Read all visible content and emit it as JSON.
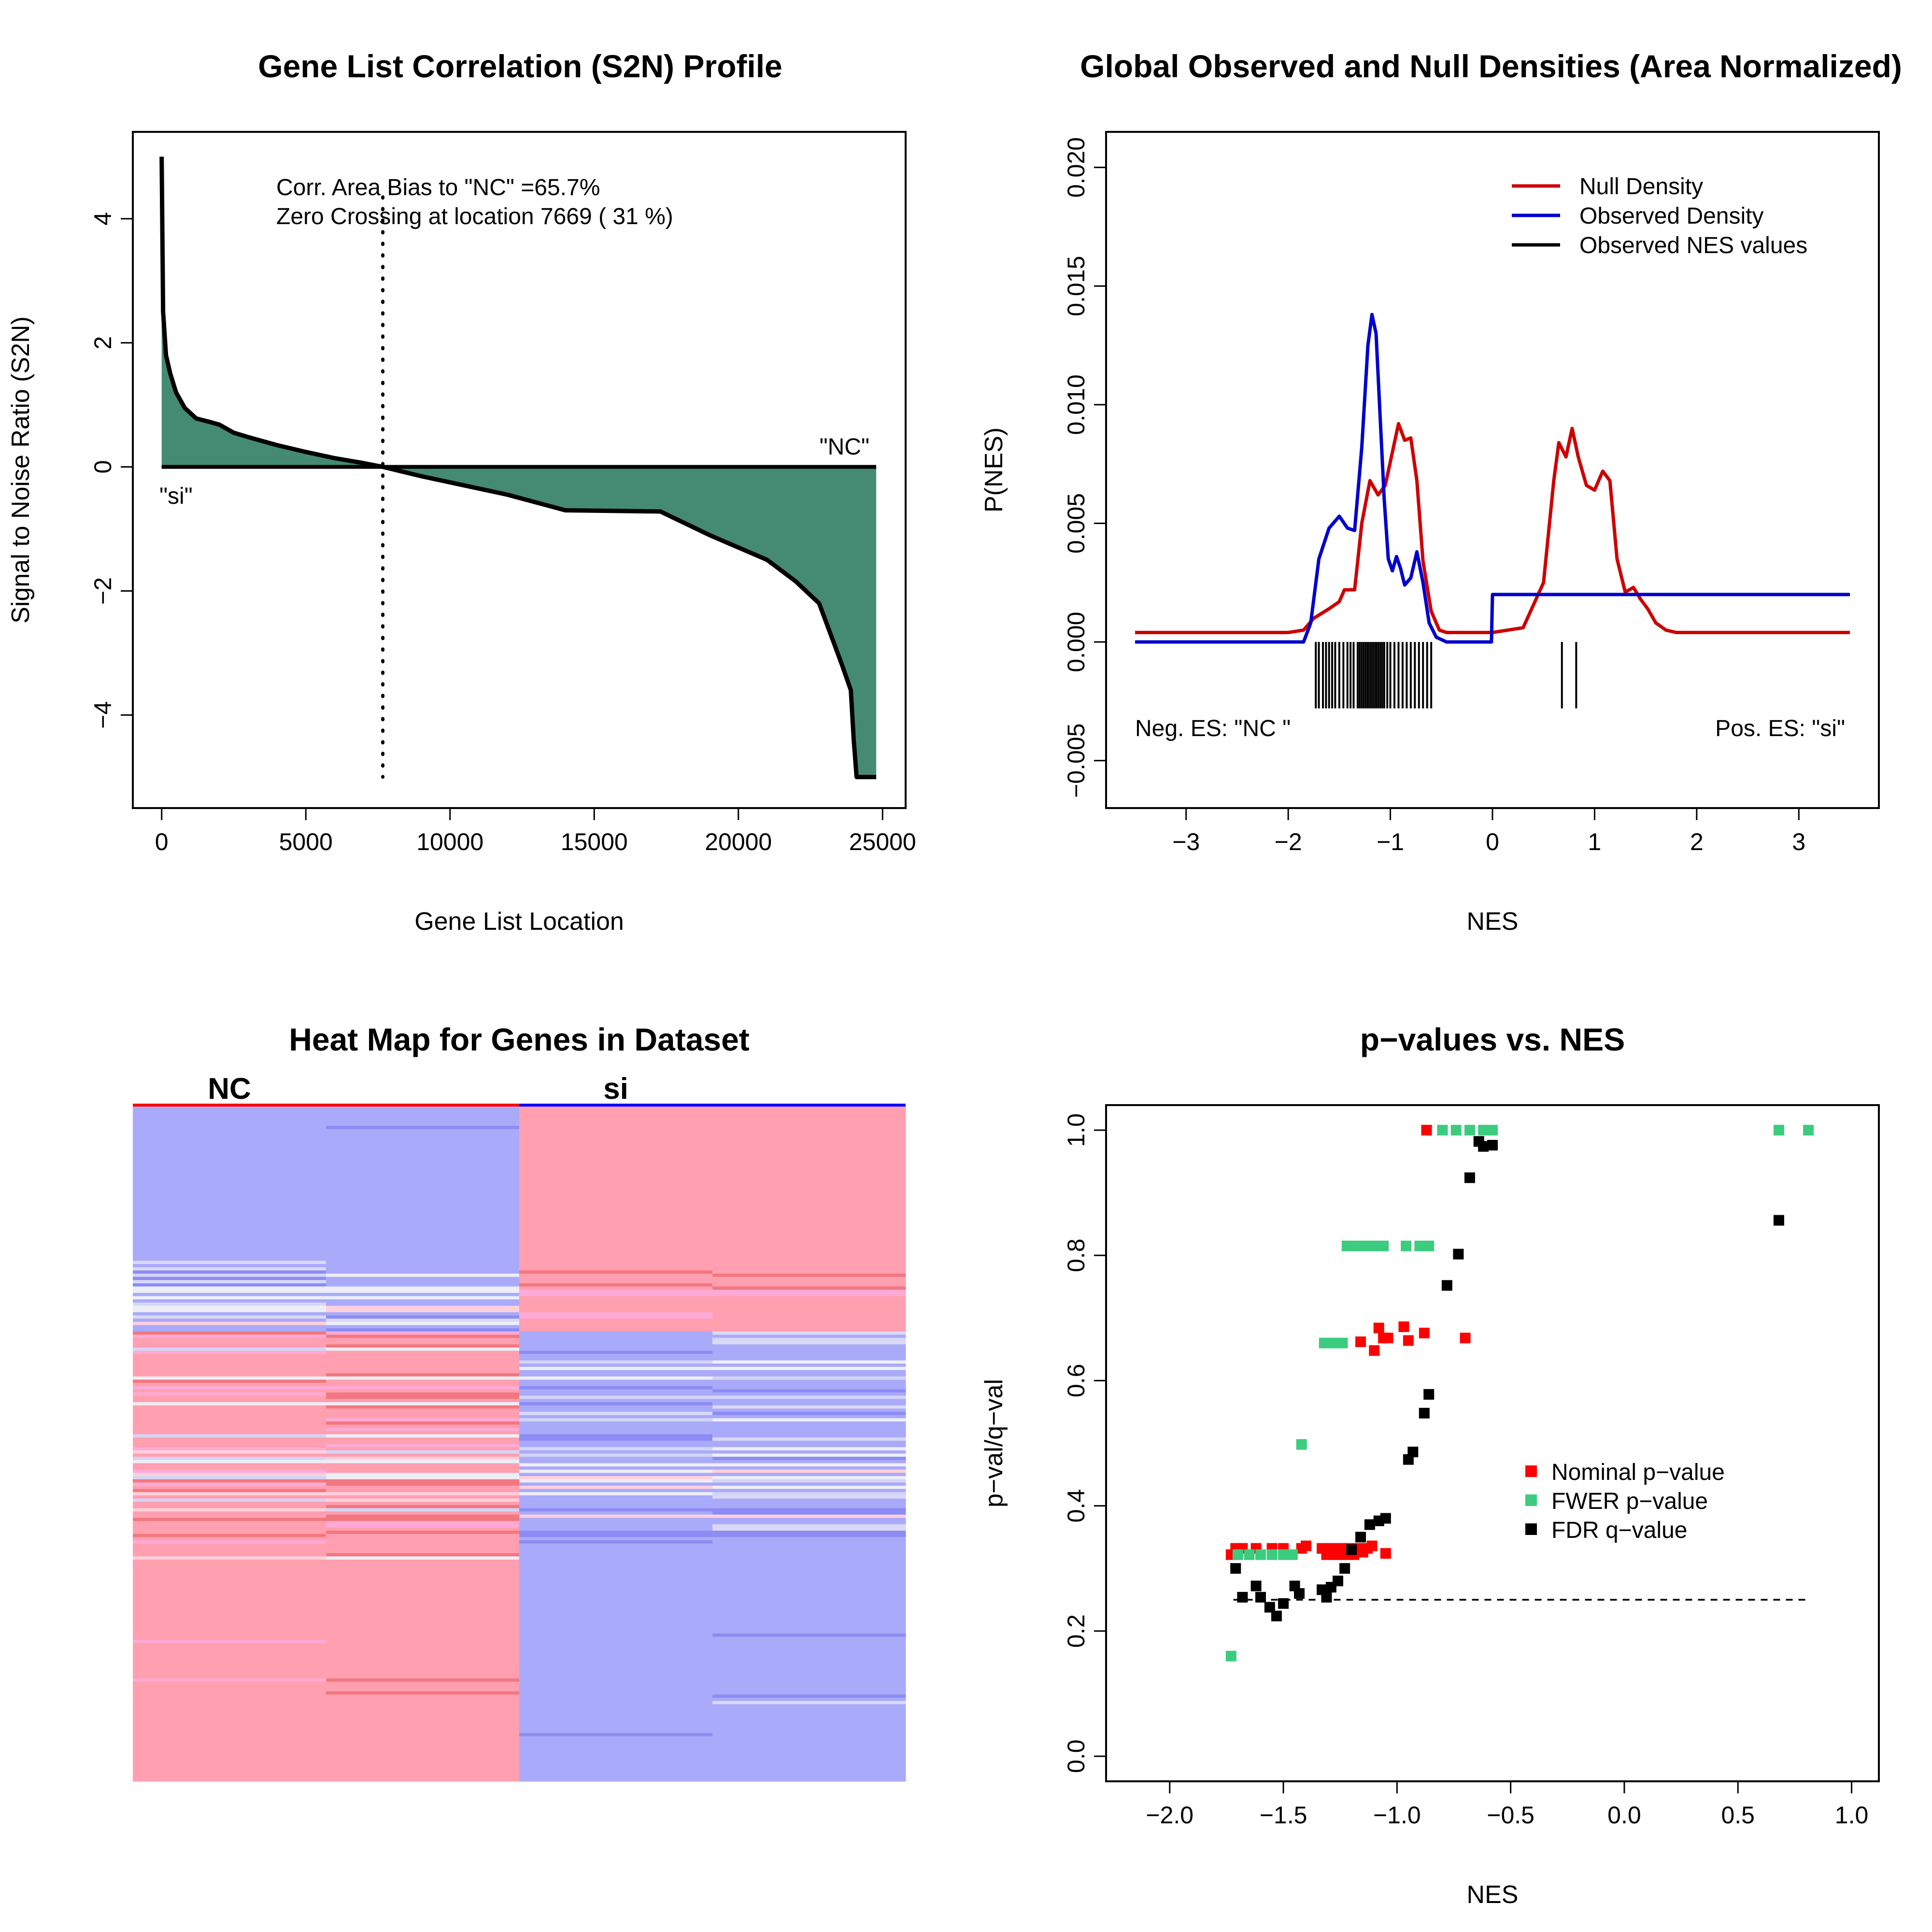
{
  "panels": {
    "s2n": {
      "title": "Gene List Correlation (S2N) Profile",
      "xlabel": "Gene List Location",
      "ylabel": "Signal to Noise Ratio (S2N)",
      "xticks": [
        "0",
        "5000",
        "10000",
        "15000",
        "20000",
        "25000"
      ],
      "yticks": [
        "−4",
        "−2",
        "0",
        "2",
        "4"
      ],
      "annotation_line1": "Corr. Area Bias to \"NC\" =65.7%",
      "annotation_line2": "Zero Crossing at location  7669  ( 31  %)",
      "label_right": "\"NC\"",
      "label_left": "\"si\""
    },
    "density": {
      "title": "Global Observed and Null Densities (Area Normalized)",
      "xlabel": "NES",
      "ylabel": "P(NES)",
      "xticks": [
        "−3",
        "−2",
        "−1",
        "0",
        "1",
        "2",
        "3"
      ],
      "yticks": [
        "−0.005",
        "0.000",
        "0.005",
        "0.010",
        "0.015",
        "0.020"
      ],
      "legend": [
        "Null Density",
        "Observed Density",
        "Observed NES values"
      ],
      "neg_label": "Neg. ES: \"NC \"",
      "pos_label": "Pos. ES: \"si\""
    },
    "heatmap": {
      "title": "Heat Map for Genes in Dataset",
      "group_left": "NC",
      "group_right": "si"
    },
    "pvalues": {
      "title": "p−values vs. NES",
      "xlabel": "NES",
      "ylabel": "p−val/q−val",
      "xticks": [
        "−2.0",
        "−1.5",
        "−1.0",
        "−0.5",
        "0.0",
        "0.5",
        "1.0"
      ],
      "yticks": [
        "0.0",
        "0.2",
        "0.4",
        "0.6",
        "0.8",
        "1.0"
      ],
      "legend": [
        "Nominal p−value",
        "FWER p−value",
        "FDR q−value"
      ]
    }
  },
  "colors": {
    "area_fill": "#458b73",
    "null_line": "#cd0000",
    "observed_line": "#0000cd",
    "nominal": "#ff0000",
    "fwer": "#3ccc7f",
    "fdr": "#000000",
    "heat_red": "#ff9fb0",
    "heat_blue": "#aaaafa"
  },
  "chart_data": [
    {
      "type": "area",
      "title": "Gene List Correlation (S2N) Profile",
      "xlabel": "Gene List Location",
      "ylabel": "Signal to Noise Ratio (S2N)",
      "xlim": [
        -1000,
        25800
      ],
      "ylim": [
        -5.5,
        5.4
      ],
      "x": [
        0,
        50,
        150,
        300,
        500,
        800,
        1200,
        1700,
        2000,
        2500,
        3000,
        4000,
        5000,
        6000,
        7000,
        7669,
        9000,
        10000,
        12000,
        14000,
        17300,
        19000,
        21000,
        22000,
        22800,
        23200,
        23600,
        23900,
        24000,
        24100,
        24780
      ],
      "y": [
        5.0,
        2.5,
        1.8,
        1.5,
        1.2,
        0.95,
        0.78,
        0.72,
        0.68,
        0.55,
        0.48,
        0.35,
        0.24,
        0.14,
        0.06,
        0.0,
        -0.15,
        -0.25,
        -0.45,
        -0.7,
        -0.72,
        -1.1,
        -1.5,
        -1.85,
        -2.2,
        -2.7,
        -3.2,
        -3.6,
        -4.4,
        -5.0,
        -5.0
      ],
      "zero_crossing": 7669,
      "grid": false
    },
    {
      "type": "line",
      "title": "Global Observed and Null Densities (Area Normalized)",
      "xlabel": "NES",
      "ylabel": "P(NES)",
      "xlim": [
        -3.5,
        3.5
      ],
      "ylim": [
        -0.007,
        0.0215
      ],
      "legend_position": "top-right",
      "series": [
        {
          "name": "Null Density",
          "x": [
            -3.5,
            -2.0,
            -1.85,
            -1.75,
            -1.6,
            -1.5,
            -1.45,
            -1.35,
            -1.28,
            -1.2,
            -1.12,
            -1.05,
            -0.98,
            -0.92,
            -0.86,
            -0.8,
            -0.74,
            -0.68,
            -0.6,
            -0.52,
            -0.45,
            -0.3,
            0.0,
            0.3,
            0.5,
            0.6,
            0.65,
            0.72,
            0.78,
            0.84,
            0.92,
            1.0,
            1.08,
            1.15,
            1.22,
            1.3,
            1.38,
            1.45,
            1.52,
            1.6,
            1.7,
            1.8,
            1.9,
            2.0,
            3.5
          ],
          "y": [
            0.0004,
            0.0004,
            0.0005,
            0.001,
            0.0014,
            0.0017,
            0.0022,
            0.0022,
            0.005,
            0.0068,
            0.0062,
            0.0066,
            0.008,
            0.0092,
            0.0085,
            0.0086,
            0.0068,
            0.0034,
            0.0013,
            0.0005,
            0.0004,
            0.0004,
            0.0004,
            0.0006,
            0.0025,
            0.0068,
            0.0084,
            0.0078,
            0.009,
            0.0078,
            0.0066,
            0.0064,
            0.0072,
            0.0068,
            0.0035,
            0.0021,
            0.0023,
            0.0018,
            0.0014,
            0.0008,
            0.0005,
            0.0004,
            0.0004,
            0.0004,
            0.0004
          ]
        },
        {
          "name": "Observed Density",
          "x": [
            -3.5,
            -1.85,
            -1.78,
            -1.7,
            -1.6,
            -1.5,
            -1.42,
            -1.35,
            -1.28,
            -1.22,
            -1.18,
            -1.14,
            -1.1,
            -1.06,
            -1.02,
            -0.98,
            -0.94,
            -0.9,
            -0.86,
            -0.8,
            -0.74,
            -0.68,
            -0.62,
            -0.55,
            -0.45,
            -0.3,
            -0.01,
            0.0,
            0.01,
            3.5
          ],
          "y": [
            0.0,
            0.0,
            0.0008,
            0.0035,
            0.0048,
            0.0053,
            0.0048,
            0.0047,
            0.0082,
            0.0125,
            0.0138,
            0.013,
            0.0095,
            0.006,
            0.0035,
            0.003,
            0.0036,
            0.0031,
            0.0024,
            0.0027,
            0.0038,
            0.0025,
            0.0008,
            0.0002,
            0.0,
            0.0,
            0.0,
            0.002,
            0.002,
            0.002
          ]
        }
      ],
      "observed_nes_values": [
        -1.73,
        -1.7,
        -1.66,
        -1.63,
        -1.6,
        -1.57,
        -1.54,
        -1.5,
        -1.46,
        -1.42,
        -1.39,
        -1.36,
        -1.32,
        -1.3,
        -1.28,
        -1.26,
        -1.24,
        -1.22,
        -1.2,
        -1.18,
        -1.16,
        -1.14,
        -1.12,
        -1.1,
        -1.08,
        -1.06,
        -1.03,
        -1.0,
        -0.96,
        -0.92,
        -0.88,
        -0.84,
        -0.8,
        -0.76,
        -0.72,
        -0.68,
        -0.64,
        -0.6,
        0.68,
        0.82
      ]
    },
    {
      "type": "heatmap",
      "title": "Heat Map for Genes in Dataset",
      "columns": [
        "NC",
        "NC",
        "si",
        "si"
      ],
      "groups": [
        "NC",
        "si"
      ]
    },
    {
      "type": "scatter",
      "title": "p−values vs. NES",
      "xlabel": "NES",
      "ylabel": "p−val/q−val",
      "xlim": [
        -2.28,
        1.12
      ],
      "ylim": [
        -0.04,
        1.04
      ],
      "legend_position": "right",
      "reference_line": 0.25,
      "series": [
        {
          "name": "Nominal p−value",
          "points": [
            [
              -1.73,
              0.322
            ],
            [
              -1.71,
              0.332
            ],
            [
              -1.68,
              0.332
            ],
            [
              -1.62,
              0.332
            ],
            [
              -1.55,
              0.332
            ],
            [
              -1.5,
              0.332
            ],
            [
              -1.42,
              0.332
            ],
            [
              -1.4,
              0.336
            ],
            [
              -1.33,
              0.332
            ],
            [
              -1.31,
              0.322
            ],
            [
              -1.29,
              0.332
            ],
            [
              -1.27,
              0.322
            ],
            [
              -1.25,
              0.332
            ],
            [
              -1.23,
              0.322
            ],
            [
              -1.21,
              0.332
            ],
            [
              -1.19,
              0.322
            ],
            [
              -1.17,
              0.332
            ],
            [
              -1.15,
              0.326
            ],
            [
              -1.13,
              0.332
            ],
            [
              -1.11,
              0.336
            ],
            [
              -1.05,
              0.324
            ],
            [
              -0.87,
              1.0
            ],
            [
              -1.16,
              0.662
            ],
            [
              -1.1,
              0.648
            ],
            [
              -1.08,
              0.684
            ],
            [
              -1.06,
              0.668
            ],
            [
              -1.04,
              0.668
            ],
            [
              -0.97,
              0.686
            ],
            [
              -0.95,
              0.664
            ],
            [
              -0.88,
              0.676
            ],
            [
              -0.7,
              0.668
            ]
          ]
        },
        {
          "name": "FWER p−value",
          "points": [
            [
              -1.73,
              0.16
            ],
            [
              -1.7,
              0.322
            ],
            [
              -1.65,
              0.322
            ],
            [
              -1.6,
              0.322
            ],
            [
              -1.55,
              0.322
            ],
            [
              -1.5,
              0.322
            ],
            [
              -1.46,
              0.322
            ],
            [
              -1.42,
              0.498
            ],
            [
              -1.32,
              0.66
            ],
            [
              -1.28,
              0.66
            ],
            [
              -1.24,
              0.66
            ],
            [
              -1.22,
              0.815
            ],
            [
              -1.18,
              0.815
            ],
            [
              -1.14,
              0.815
            ],
            [
              -1.1,
              0.815
            ],
            [
              -1.06,
              0.815
            ],
            [
              -0.96,
              0.815
            ],
            [
              -0.9,
              0.815
            ],
            [
              -0.86,
              0.815
            ],
            [
              -0.8,
              1.0
            ],
            [
              -0.74,
              1.0
            ],
            [
              -0.68,
              1.0
            ],
            [
              -0.62,
              1.0
            ],
            [
              -0.58,
              1.0
            ],
            [
              0.68,
              1.0
            ],
            [
              0.81,
              1.0
            ]
          ]
        },
        {
          "name": "FDR q−value",
          "points": [
            [
              -1.71,
              0.3
            ],
            [
              -1.68,
              0.254
            ],
            [
              -1.62,
              0.272
            ],
            [
              -1.6,
              0.254
            ],
            [
              -1.56,
              0.238
            ],
            [
              -1.53,
              0.224
            ],
            [
              -1.5,
              0.244
            ],
            [
              -1.45,
              0.272
            ],
            [
              -1.43,
              0.26
            ],
            [
              -1.33,
              0.266
            ],
            [
              -1.31,
              0.254
            ],
            [
              -1.29,
              0.27
            ],
            [
              -1.26,
              0.28
            ],
            [
              -1.23,
              0.3
            ],
            [
              -1.2,
              0.33
            ],
            [
              -1.16,
              0.35
            ],
            [
              -1.12,
              0.37
            ],
            [
              -1.08,
              0.376
            ],
            [
              -1.05,
              0.38
            ],
            [
              -0.95,
              0.474
            ],
            [
              -0.93,
              0.486
            ],
            [
              -0.88,
              0.548
            ],
            [
              -0.86,
              0.578
            ],
            [
              -0.78,
              0.752
            ],
            [
              -0.73,
              0.802
            ],
            [
              -0.68,
              0.924
            ],
            [
              -0.64,
              0.982
            ],
            [
              -0.62,
              0.974
            ],
            [
              -0.58,
              0.976
            ],
            [
              0.68,
              0.856
            ]
          ]
        }
      ]
    }
  ]
}
